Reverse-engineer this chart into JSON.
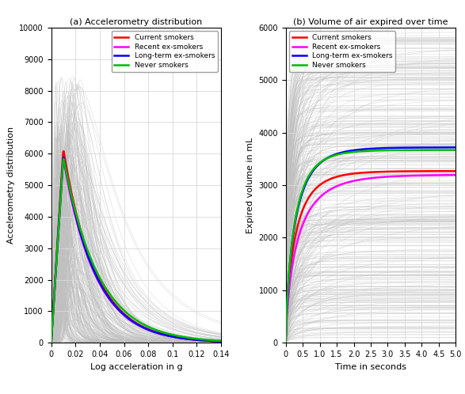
{
  "panel_a": {
    "title": "(a) Accelerometry distribution",
    "xlabel": "Log acceleration in g",
    "ylabel": "Accelerometry distribution",
    "xlim": [
      0,
      0.14
    ],
    "ylim": [
      0,
      10000
    ],
    "yticks": [
      0,
      1000,
      2000,
      3000,
      4000,
      5000,
      6000,
      7000,
      8000,
      9000,
      10000
    ],
    "xticks": [
      0,
      0.02,
      0.04,
      0.06,
      0.08,
      0.1,
      0.12,
      0.14
    ],
    "n_gray_lines": 300,
    "gray_color": "#c0c0c0",
    "curves": [
      {
        "key": "current_smokers",
        "color": "#ff0000",
        "label": "Current smokers",
        "peak_y": 6150,
        "peak_x": 0.01,
        "rise_k": 180,
        "decay_k": 38
      },
      {
        "key": "recent_ex_smokers",
        "color": "#ff00ff",
        "label": "Recent ex-smokers",
        "peak_y": 5850,
        "peak_x": 0.01,
        "rise_k": 180,
        "decay_k": 38
      },
      {
        "key": "long_term_ex_smokers",
        "color": "#0000ff",
        "label": "Long-term ex-smokers",
        "peak_y": 5950,
        "peak_x": 0.01,
        "rise_k": 180,
        "decay_k": 38
      },
      {
        "key": "never_smokers",
        "color": "#00bb00",
        "label": "Never smokers",
        "peak_y": 5900,
        "peak_x": 0.01,
        "rise_k": 180,
        "decay_k": 35
      }
    ]
  },
  "panel_b": {
    "title": "(b) Volume of air expired over time",
    "xlabel": "Time in seconds",
    "ylabel": "Expired volume in mL",
    "xlim": [
      0,
      5
    ],
    "ylim": [
      0,
      6000
    ],
    "yticks": [
      0,
      1000,
      2000,
      3000,
      4000,
      5000,
      6000
    ],
    "xticks": [
      0,
      0.5,
      1.0,
      1.5,
      2.0,
      2.5,
      3.0,
      3.5,
      4.0,
      4.5,
      5.0
    ],
    "n_gray_lines": 400,
    "gray_color": "#c0c0c0",
    "curves": [
      {
        "key": "current_smokers",
        "color": "#ff0000",
        "label": "Current smokers",
        "plateau": 3270,
        "rate": 2.5,
        "shape": 0.75
      },
      {
        "key": "recent_ex_smokers",
        "color": "#ff00ff",
        "label": "Recent ex-smokers",
        "plateau": 3200,
        "rate": 2.0,
        "shape": 0.72
      },
      {
        "key": "long_term_ex_smokers",
        "color": "#0000ff",
        "label": "Long-term ex-smokers",
        "plateau": 3720,
        "rate": 2.5,
        "shape": 0.75
      },
      {
        "key": "never_smokers",
        "color": "#00bb00",
        "label": "Never smokers",
        "plateau": 3670,
        "rate": 2.7,
        "shape": 0.77
      }
    ]
  },
  "bg_color": "#ffffff",
  "fig_bg_color": "#ffffff"
}
